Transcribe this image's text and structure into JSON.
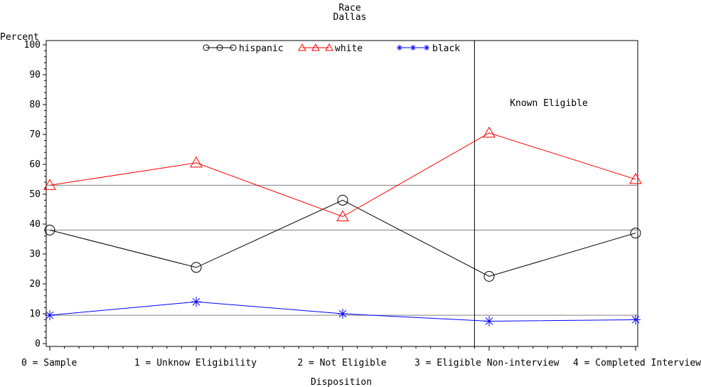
{
  "chart_data": {
    "type": "line",
    "title": "Race",
    "subtitle": "Dallas",
    "ylabel": "Percent",
    "xlabel": "Disposition",
    "ylim": [
      0,
      100
    ],
    "yticks": [
      0,
      10,
      20,
      30,
      40,
      50,
      60,
      70,
      80,
      90,
      100
    ],
    "categories": [
      "0 = Sample",
      "1 = Unknow Eligibility",
      "2 = Not Eligible",
      "3 = Eligible Non-interview",
      "4 = Completed Interview"
    ],
    "x": [
      0,
      1,
      2,
      3,
      4
    ],
    "series": [
      {
        "name": "hispanic",
        "values": [
          38,
          25.5,
          48,
          22.5,
          37
        ],
        "color": "#000000",
        "marker": "circle"
      },
      {
        "name": "white",
        "values": [
          53,
          60.5,
          42.5,
          70.5,
          55
        ],
        "color": "#ff0000",
        "marker": "triangle"
      },
      {
        "name": "black",
        "values": [
          9.5,
          14,
          10,
          7.5,
          8
        ],
        "color": "#0000ff",
        "marker": "star"
      }
    ],
    "reference_lines": [
      53,
      38,
      9.5
    ],
    "vertical_divider_x": 2.9,
    "annotation": "Known Eligible",
    "legend_position": "top"
  }
}
